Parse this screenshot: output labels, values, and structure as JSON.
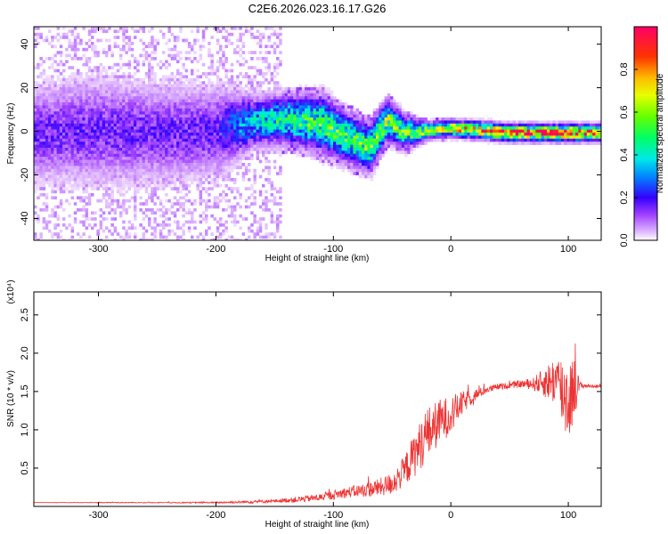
{
  "title": "C2E6.2026.023.16.17.G26",
  "chart_data": [
    {
      "type": "heatmap",
      "xlabel": "Height of straight line (km)",
      "ylabel": "Frequency (Hz)",
      "xlim": [
        -355,
        128
      ],
      "ylim": [
        -50,
        48
      ],
      "xticks": [
        -300,
        -200,
        -100,
        0,
        100
      ],
      "yticks": [
        -40,
        -20,
        0,
        20,
        40
      ],
      "colorbar": {
        "label": "Normalized spectral amplitude",
        "range": [
          0.0,
          1.0
        ],
        "ticks": [
          0.0,
          0.2,
          0.4,
          0.6,
          0.8
        ],
        "tick_labels": [
          "0.0",
          "0.2",
          "0.4",
          "0.6",
          "0.8"
        ],
        "colors": [
          "#ffffff",
          "#cc66ff",
          "#5500ff",
          "#0033ff",
          "#00ccff",
          "#00ff66",
          "#88ff00",
          "#ffcc00",
          "#ff3300",
          "#ff0066"
        ]
      },
      "ridge": [
        {
          "x": -350,
          "y": 0,
          "amp": 0.15,
          "spread": 12
        },
        {
          "x": -300,
          "y": 1,
          "amp": 0.15,
          "spread": 13
        },
        {
          "x": -250,
          "y": 0,
          "amp": 0.15,
          "spread": 12
        },
        {
          "x": -200,
          "y": 1,
          "amp": 0.16,
          "spread": 11
        },
        {
          "x": -170,
          "y": 5,
          "amp": 0.35,
          "spread": 6
        },
        {
          "x": -140,
          "y": 6,
          "amp": 0.45,
          "spread": 6
        },
        {
          "x": -110,
          "y": 4,
          "amp": 0.5,
          "spread": 7
        },
        {
          "x": -90,
          "y": -2,
          "amp": 0.5,
          "spread": 6
        },
        {
          "x": -70,
          "y": -7,
          "amp": 0.5,
          "spread": 6
        },
        {
          "x": -55,
          "y": 6,
          "amp": 0.55,
          "spread": 5
        },
        {
          "x": -40,
          "y": 0,
          "amp": 0.5,
          "spread": 4
        },
        {
          "x": -20,
          "y": 1,
          "amp": 0.6,
          "spread": 2
        },
        {
          "x": 0,
          "y": 2,
          "amp": 0.7,
          "spread": 2
        },
        {
          "x": 50,
          "y": 0,
          "amp": 0.9,
          "spread": 2
        },
        {
          "x": 100,
          "y": 0,
          "amp": 0.9,
          "spread": 2
        },
        {
          "x": 128,
          "y": 0,
          "amp": 0.9,
          "spread": 2
        }
      ]
    },
    {
      "type": "line",
      "xlabel": "Height of straight line (km)",
      "ylabel": "SNR (10 * v/v)",
      "y_multiplier_label": "(x10⁴)",
      "xlim": [
        -355,
        128
      ],
      "ylim": [
        0.0,
        2.8
      ],
      "xticks": [
        -300,
        -200,
        -100,
        0,
        100
      ],
      "yticks": [
        0.5,
        1.0,
        1.5,
        2.0,
        2.5
      ],
      "ytick_labels": [
        "0.5",
        "1.0",
        "1.5",
        "2.0",
        "2.5"
      ],
      "series": [
        {
          "color": "#ee3333",
          "x": [
            -355,
            -300,
            -250,
            -200,
            -170,
            -150,
            -130,
            -110,
            -100,
            -90,
            -80,
            -70,
            -60,
            -50,
            -40,
            -30,
            -20,
            -10,
            0,
            10,
            20,
            30,
            40,
            50,
            60,
            70,
            80,
            90,
            95,
            100,
            105,
            110,
            120,
            128
          ],
          "y": [
            0.05,
            0.05,
            0.05,
            0.05,
            0.06,
            0.07,
            0.09,
            0.12,
            0.15,
            0.18,
            0.2,
            0.22,
            0.25,
            0.3,
            0.45,
            0.7,
            0.95,
            1.1,
            1.2,
            1.35,
            1.45,
            1.52,
            1.56,
            1.58,
            1.6,
            1.6,
            1.62,
            1.65,
            1.5,
            1.4,
            1.55,
            1.58,
            1.57,
            1.57
          ],
          "noise": [
            0.0,
            0.005,
            0.005,
            0.01,
            0.02,
            0.02,
            0.04,
            0.05,
            0.06,
            0.07,
            0.08,
            0.1,
            0.12,
            0.15,
            0.2,
            0.3,
            0.35,
            0.3,
            0.25,
            0.15,
            0.08,
            0.05,
            0.04,
            0.04,
            0.05,
            0.08,
            0.2,
            0.35,
            0.5,
            0.6,
            0.4,
            0.05,
            0.02,
            0.02
          ]
        }
      ]
    }
  ]
}
